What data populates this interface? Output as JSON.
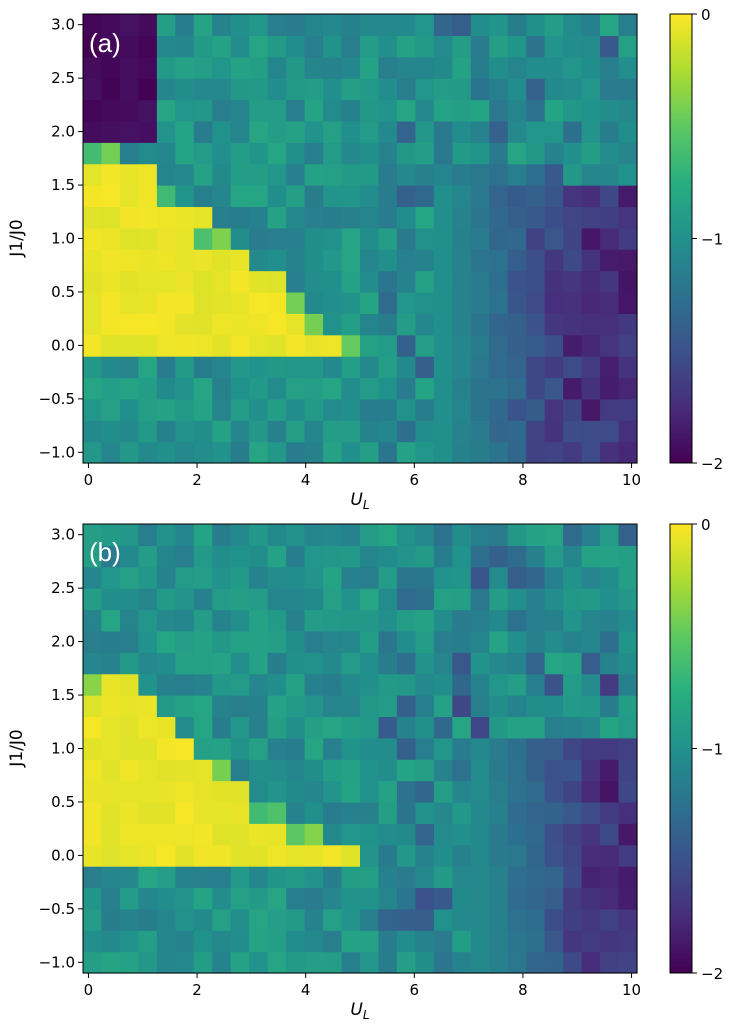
{
  "chart_data": [
    {
      "type": "heatmap",
      "panel_label": "(a)",
      "xlabel": "U_L",
      "ylabel": "J1/J0",
      "xlim": [
        -0.1,
        10.1
      ],
      "ylim": [
        -1.1,
        3.1
      ],
      "xticks": [
        0,
        2,
        4,
        6,
        8,
        10
      ],
      "yticks": [
        -1.0,
        -0.5,
        0.0,
        0.5,
        1.0,
        1.5,
        2.0,
        2.5,
        3.0
      ],
      "xtick_labels": [
        "0",
        "2",
        "4",
        "6",
        "8",
        "10"
      ],
      "ytick_labels": [
        "−1.0",
        "−0.5",
        "0.0",
        "0.5",
        "1.0",
        "1.5",
        "2.0",
        "2.5",
        "3.0"
      ],
      "colorbar": {
        "min": -2,
        "max": 0,
        "ticks": [
          "0",
          "−1",
          "−2"
        ],
        "colormap": "viridis"
      },
      "grid": {
        "nx": 30,
        "ny": 21
      },
      "yellow_region": {
        "description_values": "cells value 0 for J1/J0 between 0.0 and upper boundary",
        "boundary_x": [
          0.0,
          0.5,
          1.0,
          1.5,
          2.0,
          2.5,
          3.0,
          3.5,
          3.8,
          4.2,
          4.6,
          5.0
        ],
        "boundary_y": [
          2.0,
          1.9,
          1.65,
          1.45,
          1.25,
          1.05,
          0.85,
          0.65,
          0.45,
          0.3,
          0.15,
          0.0
        ]
      },
      "dark_corner": {
        "x_max": 1.2,
        "y_min": 2.0,
        "value": -1.95
      },
      "background_value": -1.0,
      "purple_region": {
        "x_min": 6.5,
        "y_min": -1.0,
        "y_max": 1.5,
        "value": -1.8
      }
    },
    {
      "type": "heatmap",
      "panel_label": "(b)",
      "xlabel": "U_L",
      "ylabel": "J1/J0",
      "xlim": [
        -0.1,
        10.1
      ],
      "ylim": [
        -1.1,
        3.1
      ],
      "xticks": [
        0,
        2,
        4,
        6,
        8,
        10
      ],
      "yticks": [
        -1.0,
        -0.5,
        0.0,
        0.5,
        1.0,
        1.5,
        2.0,
        2.5,
        3.0
      ],
      "xtick_labels": [
        "0",
        "2",
        "4",
        "6",
        "8",
        "10"
      ],
      "ytick_labels": [
        "−1.0",
        "−0.5",
        "0.0",
        "0.5",
        "1.0",
        "1.5",
        "2.0",
        "2.5",
        "3.0"
      ],
      "colorbar": {
        "min": -2,
        "max": 0,
        "ticks": [
          "0",
          "−1",
          "−2"
        ],
        "colormap": "viridis"
      },
      "grid": {
        "nx": 30,
        "ny": 21
      },
      "yellow_region": {
        "boundary_x": [
          0.0,
          0.5,
          1.0,
          1.5,
          2.0,
          2.5,
          3.0,
          3.5,
          4.0,
          4.5,
          5.0
        ],
        "boundary_y": [
          1.7,
          1.7,
          1.5,
          1.25,
          1.0,
          0.8,
          0.6,
          0.45,
          0.3,
          0.15,
          0.0
        ]
      },
      "dark_corner": null,
      "background_value": -1.0,
      "purple_region": {
        "x_min": 7.0,
        "y_min": -1.0,
        "y_max": 1.2,
        "value": -1.75
      }
    }
  ]
}
